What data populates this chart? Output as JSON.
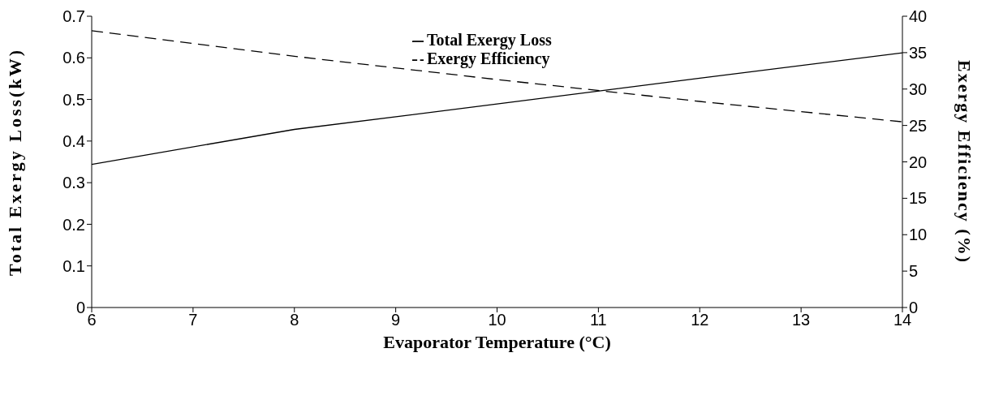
{
  "chart_data": {
    "type": "line",
    "xlabel": "Evaporator Temperature (°C)",
    "ylabel": "Total Exergy Loss(kW)",
    "y2label": "Exergy Efficiency (%)",
    "x": [
      6,
      8,
      10,
      12,
      14
    ],
    "series": [
      {
        "name": "Total Exergy Loss",
        "color": "#000000",
        "values": [
          0.344,
          0.428,
          0.489,
          0.551,
          0.612
        ],
        "line_style": "solid"
      },
      {
        "name": "Exergy Efficiency",
        "color": "#000000",
        "values": [
          38.0,
          34.5,
          31.3,
          28.3,
          25.5
        ],
        "axis": "y2",
        "line_style": "dashed"
      }
    ],
    "xlim": [
      6,
      14
    ],
    "xticks": [
      6,
      7,
      8,
      9,
      10,
      11,
      12,
      13,
      14
    ],
    "ylim": [
      0,
      0.7
    ],
    "yticks": [
      0,
      0.1,
      0.2,
      0.3,
      0.4,
      0.5,
      0.6,
      0.7
    ],
    "y2lim": [
      0,
      40
    ],
    "y2ticks": [
      0,
      5,
      10,
      15,
      20,
      25,
      30,
      35,
      40
    ],
    "legend": "top",
    "marker": "none"
  }
}
